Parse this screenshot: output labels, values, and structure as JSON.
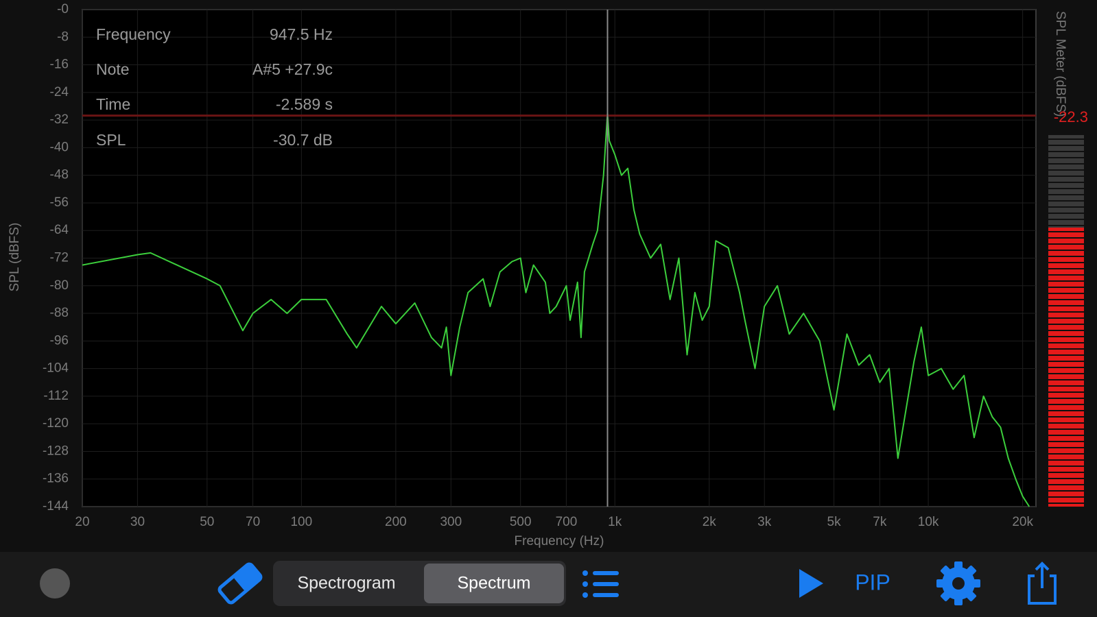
{
  "chart_data": {
    "type": "line",
    "x_label": "Frequency (Hz)",
    "y_label": "SPL (dBFS)",
    "xlim": [
      20,
      22050
    ],
    "ylim": [
      -144,
      0
    ],
    "log_x": true,
    "grid": true,
    "xticks": [
      20,
      30,
      50,
      70,
      100,
      200,
      300,
      500,
      700,
      {
        "value": 1000,
        "label": "1k"
      },
      {
        "value": 2000,
        "label": "2k"
      },
      {
        "value": 3000,
        "label": "3k"
      },
      {
        "value": 5000,
        "label": "5k"
      },
      {
        "value": 7000,
        "label": "7k"
      },
      {
        "value": 10000,
        "label": "10k"
      },
      {
        "value": 20000,
        "label": "20k"
      }
    ],
    "yticks": [
      {
        "value": 0,
        "label": "-0"
      },
      -8,
      -16,
      -24,
      -32,
      -40,
      -48,
      -56,
      -64,
      -72,
      -80,
      -88,
      -96,
      -104,
      -112,
      -120,
      -128,
      -136,
      -144
    ],
    "x": [
      20,
      30,
      33,
      50,
      55,
      65,
      70,
      80,
      90,
      100,
      120,
      140,
      150,
      180,
      200,
      230,
      260,
      280,
      290,
      300,
      320,
      340,
      380,
      400,
      430,
      470,
      500,
      520,
      550,
      600,
      620,
      650,
      700,
      720,
      760,
      780,
      800,
      850,
      880,
      920,
      947.5,
      960,
      1000,
      1050,
      1100,
      1150,
      1200,
      1300,
      1400,
      1500,
      1600,
      1700,
      1800,
      1900,
      2000,
      2100,
      2300,
      2500,
      2600,
      2800,
      3000,
      3300,
      3600,
      4000,
      4500,
      5000,
      5500,
      6000,
      6500,
      7000,
      7500,
      8000,
      9000,
      9500,
      10000,
      11000,
      12000,
      13000,
      14000,
      15000,
      16000,
      17000,
      18000,
      19000,
      20000,
      21000
    ],
    "series": [
      {
        "color": "#3ccf3c",
        "values": [
          -74,
          -71,
          -70.5,
          -78,
          -80,
          -93,
          -88,
          -84,
          -88,
          -84,
          -84,
          -94,
          -98,
          -86,
          -91,
          -85,
          -95,
          -98,
          -92,
          -106,
          -92,
          -82,
          -78,
          -86,
          -76,
          -73,
          -72,
          -82,
          -74,
          -79,
          -88,
          -86,
          -80,
          -90,
          -79,
          -95,
          -76,
          -68,
          -64,
          -48,
          -30,
          -38,
          -42,
          -48,
          -46,
          -58,
          -65,
          -72,
          -68,
          -84,
          -72,
          -100,
          -82,
          -90,
          -86,
          -67,
          -69,
          -82,
          -90,
          -104,
          -86,
          -80,
          -94,
          -88,
          -96,
          -116,
          -94,
          -103,
          -100,
          -108,
          -104,
          -130,
          -102,
          -92,
          -106,
          -104,
          -110,
          -106,
          -124,
          -112,
          -118,
          -121,
          -130,
          -136,
          -141,
          -144
        ]
      }
    ],
    "cursor": {
      "x": 947.5,
      "y": -30.7
    }
  },
  "info": {
    "rows": [
      [
        "Frequency",
        "947.5 Hz"
      ],
      [
        "Note",
        "A#5 +27.9c"
      ],
      [
        "Time",
        "-2.589 s"
      ],
      [
        "SPL",
        "-30.7 dB"
      ]
    ]
  },
  "meter": {
    "title": "SPL Meter (dBFS)",
    "reading": "-22.3"
  },
  "toolbar": {
    "segments": [
      "Spectrogram",
      "Spectrum"
    ],
    "pip": "PIP"
  }
}
